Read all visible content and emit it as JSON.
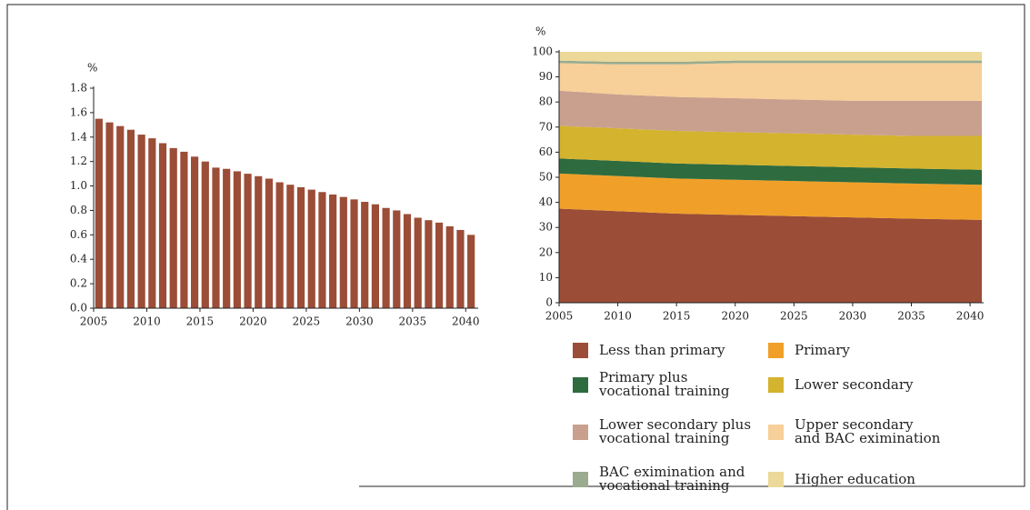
{
  "chart_data": [
    {
      "type": "bar",
      "y_unit": "%",
      "color": "#9b4d37",
      "x": [
        2005,
        2006,
        2007,
        2008,
        2009,
        2010,
        2011,
        2012,
        2013,
        2014,
        2015,
        2016,
        2017,
        2018,
        2019,
        2020,
        2021,
        2022,
        2023,
        2024,
        2025,
        2026,
        2027,
        2028,
        2029,
        2030,
        2031,
        2032,
        2033,
        2034,
        2035,
        2036,
        2037,
        2038,
        2039,
        2040
      ],
      "values": [
        1.55,
        1.52,
        1.49,
        1.46,
        1.42,
        1.39,
        1.35,
        1.31,
        1.28,
        1.24,
        1.2,
        1.15,
        1.14,
        1.12,
        1.1,
        1.08,
        1.06,
        1.03,
        1.01,
        0.99,
        0.97,
        0.95,
        0.93,
        0.91,
        0.89,
        0.87,
        0.85,
        0.82,
        0.8,
        0.77,
        0.74,
        0.72,
        0.7,
        0.67,
        0.64,
        0.6
      ],
      "xlim": [
        2005,
        2041
      ],
      "xticks": [
        2005,
        2010,
        2015,
        2020,
        2025,
        2030,
        2035,
        2040
      ],
      "ylim": [
        0,
        1.8
      ],
      "yticks": [
        {
          "value": 0,
          "label": "0.0"
        },
        0.2,
        0.4,
        0.6,
        0.8,
        {
          "value": 1,
          "label": "1.0"
        },
        1.2,
        1.4,
        1.6,
        1.8
      ]
    },
    {
      "type": "stacked_area",
      "y_unit": "%",
      "x": [
        2005,
        2010,
        2015,
        2020,
        2025,
        2030,
        2035,
        2041
      ],
      "series": [
        {
          "name": "Less than primary",
          "color": "#9b4d37",
          "values": [
            37.5,
            36.5,
            35.5,
            35,
            34.5,
            34,
            33.5,
            33
          ]
        },
        {
          "name": "Primary",
          "color": "#f0a028",
          "values": [
            14,
            14,
            14,
            14,
            14,
            14,
            14,
            14
          ]
        },
        {
          "name": "Primary plus\nvocational training",
          "color": "#2e6b3e",
          "values": [
            6,
            6,
            6,
            6,
            6,
            6,
            6,
            6
          ]
        },
        {
          "name": "Lower secondary",
          "color": "#d4b32e",
          "values": [
            13,
            13,
            13,
            13,
            13,
            13,
            13,
            13.5
          ]
        },
        {
          "name": "Lower secondary plus\nvocational training",
          "color": "#c9a08e",
          "values": [
            14,
            13.5,
            13.5,
            13.5,
            13.5,
            13.5,
            14,
            14
          ]
        },
        {
          "name": "Upper secondary\nand BAC eximination",
          "color": "#f7cf98",
          "values": [
            11,
            12,
            13,
            14,
            14.5,
            15,
            15,
            15
          ]
        },
        {
          "name": "BAC eximination and\nvocational training",
          "color": "#9aab8f",
          "values": [
            1,
            1,
            1,
            1,
            1,
            1,
            1,
            1
          ]
        },
        {
          "name": "Higher education",
          "color": "#ecd898",
          "values": [
            3.5,
            4,
            4,
            3.5,
            3.5,
            3.5,
            3.5,
            3.5
          ]
        }
      ],
      "xlim": [
        2005,
        2041
      ],
      "xticks": [
        2005,
        2010,
        2015,
        2020,
        2025,
        2030,
        2035,
        2040
      ],
      "ylim": [
        0,
        100
      ],
      "yticks": [
        0,
        10,
        20,
        30,
        40,
        50,
        60,
        70,
        80,
        90,
        100
      ]
    }
  ]
}
